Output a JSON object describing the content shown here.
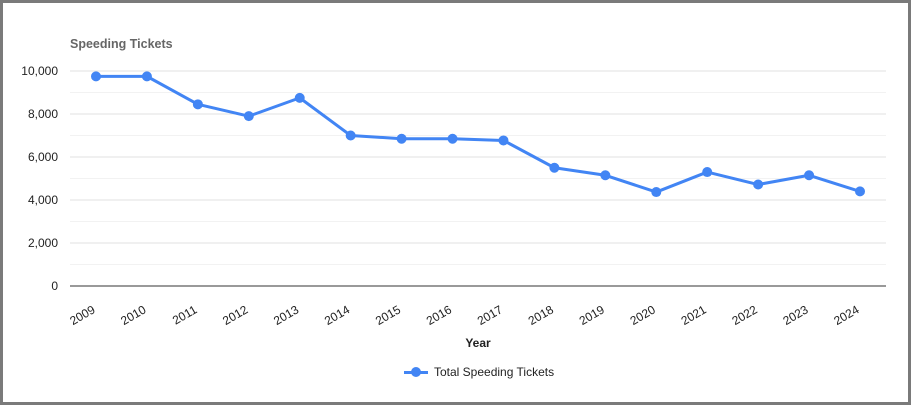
{
  "chart_data": {
    "type": "line",
    "title": "Speeding Tickets",
    "xlabel": "Year",
    "ylabel": "",
    "ylim": [
      0,
      10000
    ],
    "yticks": [
      "0",
      "2,000",
      "4,000",
      "6,000",
      "8,000",
      "10,000"
    ],
    "ytick_values": [
      0,
      2000,
      4000,
      6000,
      8000,
      10000
    ],
    "categories": [
      "2009",
      "2010",
      "2011",
      "2012",
      "2013",
      "2014",
      "2015",
      "2016",
      "2017",
      "2018",
      "2019",
      "2020",
      "2021",
      "2022",
      "2023",
      "2024"
    ],
    "series": [
      {
        "name": "Total Speeding Tickets",
        "color": "#4285f4",
        "values": [
          9750,
          9750,
          8450,
          7900,
          8750,
          7000,
          6850,
          6850,
          6770,
          5500,
          5150,
          4370,
          5300,
          4720,
          5150,
          4400
        ]
      }
    ],
    "grid": true,
    "legend_position": "bottom"
  }
}
